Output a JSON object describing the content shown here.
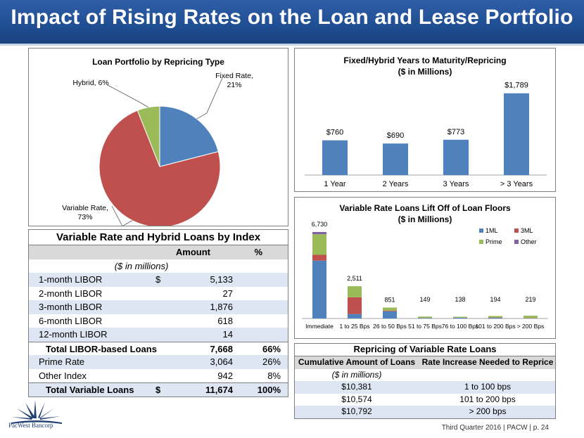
{
  "slide_title": "Impact of Rising Rates on the Loan and Lease Portfolio",
  "footer": "Third Quarter 2016 | PACW | p. 24",
  "logo_text": "PacWest Bancorp",
  "colors": {
    "banner": "#1f4e92",
    "blue": "#4f81bd",
    "red": "#c0504d",
    "green": "#9bbb59",
    "purple": "#8064a2"
  },
  "chart_data": [
    {
      "type": "pie",
      "title": "Loan Portfolio by Repricing Type",
      "slices": [
        {
          "label": "Fixed Rate, 21%",
          "value": 21,
          "color": "#4f81bd"
        },
        {
          "label": "Variable Rate, 73%",
          "value": 73,
          "color": "#c0504d"
        },
        {
          "label": "Hybrid, 6%",
          "value": 6,
          "color": "#9bbb59"
        }
      ]
    },
    {
      "type": "bar",
      "title": "Fixed/Hybrid Years to Maturity/Repricing",
      "subtitle": "($ in Millions)",
      "categories": [
        "1 Year",
        "2 Years",
        "3 Years",
        "> 3 Years"
      ],
      "values": [
        760,
        690,
        773,
        1789
      ],
      "data_labels": [
        "$760",
        "$690",
        "$773",
        "$1,789"
      ],
      "ylim": [
        0,
        2000
      ],
      "color": "#4f81bd"
    },
    {
      "type": "bar",
      "stacked": true,
      "title": "Variable Rate Loans Lift Off of Loan Floors",
      "subtitle": "($ in Millions)",
      "categories": [
        "Immediate",
        "1 to 25 Bps",
        "26 to 50 Bps",
        "51 to 75 Bps",
        "76 to 100 Bps",
        "101 to 200 Bps",
        "> 200 Bps"
      ],
      "totals": [
        "6,730",
        "2,511",
        "851",
        "149",
        "138",
        "194",
        "219"
      ],
      "legend": "top-right",
      "ylim": [
        0,
        7000
      ],
      "series": [
        {
          "name": "1ML",
          "color": "#4f81bd",
          "values": [
            4500,
            350,
            560,
            40,
            60,
            60,
            20
          ]
        },
        {
          "name": "3ML",
          "color": "#c0504d",
          "values": [
            450,
            1300,
            60,
            10,
            10,
            20,
            20
          ]
        },
        {
          "name": "Prime",
          "color": "#9bbb59",
          "values": [
            1600,
            861,
            231,
            99,
            68,
            114,
            179
          ]
        },
        {
          "name": "Other",
          "color": "#8064a2",
          "values": [
            180,
            0,
            0,
            0,
            0,
            0,
            0
          ]
        }
      ]
    }
  ],
  "index_table": {
    "title": "Variable Rate and Hybrid Loans by Index",
    "col_amount": "Amount",
    "col_pct": "%",
    "subheader": "($ in millions)",
    "rows": [
      {
        "label": "1-month LIBOR",
        "dollar": "$",
        "amount": "5,133",
        "pct": ""
      },
      {
        "label": "2-month LIBOR",
        "dollar": "",
        "amount": "27",
        "pct": ""
      },
      {
        "label": "3-month LIBOR",
        "dollar": "",
        "amount": "1,876",
        "pct": ""
      },
      {
        "label": "6-month LIBOR",
        "dollar": "",
        "amount": "618",
        "pct": ""
      },
      {
        "label": "12-month LIBOR",
        "dollar": "",
        "amount": "14",
        "pct": ""
      },
      {
        "label": "Total LIBOR-based Loans",
        "dollar": "",
        "amount": "7,668",
        "pct": "66%"
      },
      {
        "label": "Prime Rate",
        "dollar": "",
        "amount": "3,064",
        "pct": "26%"
      },
      {
        "label": "Other Index",
        "dollar": "",
        "amount": "942",
        "pct": "8%"
      },
      {
        "label": "Total Variable Loans",
        "dollar": "$",
        "amount": "11,674",
        "pct": "100%"
      }
    ]
  },
  "reprice_table": {
    "title": "Repricing of Variable Rate Loans",
    "col1": "Cumulative Amount of Loans",
    "col2": "Rate Increase Needed to Reprice",
    "subheader": "($ in millions)",
    "rows": [
      {
        "amount": "$10,381",
        "rate": "1 to 100 bps"
      },
      {
        "amount": "$10,574",
        "rate": "101 to 200 bps"
      },
      {
        "amount": "$10,792",
        "rate": "> 200 bps"
      }
    ]
  }
}
